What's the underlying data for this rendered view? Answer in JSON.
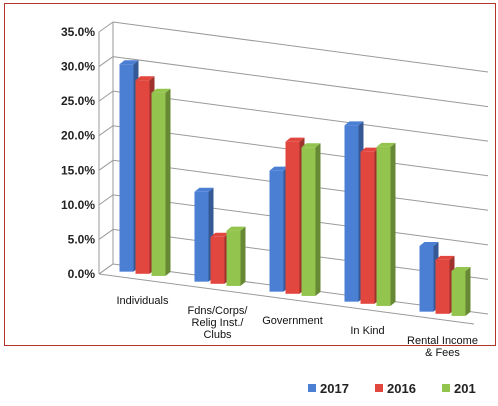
{
  "chart_data": {
    "type": "bar",
    "categories": [
      "Individuals",
      "Fdns/Corps/\nRelig Inst./\nClubs",
      "Government",
      "In Kind",
      "Rental Income\n& Fees"
    ],
    "series": [
      {
        "name": "2017",
        "values": [
          30.0,
          13.0,
          17.5,
          25.5,
          9.5
        ]
      },
      {
        "name": "2016",
        "values": [
          28.0,
          6.8,
          22.0,
          22.0,
          7.8
        ]
      },
      {
        "name": "201",
        "values": [
          26.5,
          8.0,
          21.5,
          23.0,
          6.5
        ]
      }
    ],
    "ylim": [
      0,
      35
    ],
    "yticks": [
      "0.0%",
      "5.0%",
      "10.0%",
      "15.0%",
      "20.0%",
      "25.0%",
      "30.0%",
      "35.0%"
    ],
    "grid": true,
    "legend": "bottom",
    "colors": {
      "2017": "#4a7fd4",
      "2016": "#e2473f",
      "201": "#93c44d",
      "frame": "#b3342a",
      "grid": "#9a9a9a"
    }
  }
}
